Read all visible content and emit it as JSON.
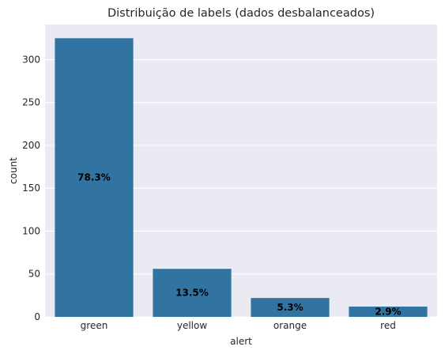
{
  "chart_data": {
    "type": "bar",
    "title": "Distribuição de labels (dados desbalanceados)",
    "xlabel": "alert",
    "ylabel": "count",
    "categories": [
      "green",
      "yellow",
      "orange",
      "red"
    ],
    "values": [
      325,
      56,
      22,
      12
    ],
    "data_labels": [
      "78.3%",
      "13.5%",
      "5.3%",
      "2.9%"
    ],
    "ylim": [
      0,
      341
    ],
    "yticks": [
      0,
      50,
      100,
      150,
      200,
      250,
      300
    ],
    "grid": true,
    "colors": {
      "bar": "#3274a1",
      "plot_background": "#eaeaf2",
      "grid": "#ffffff"
    }
  }
}
